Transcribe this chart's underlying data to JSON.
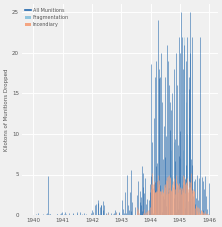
{
  "title": "",
  "xlabel": "",
  "ylabel": "Kilotons of Munitions Dropped",
  "xlim": [
    1939.6,
    1946.3
  ],
  "ylim": [
    0,
    26
  ],
  "yticks": [
    0,
    5,
    10,
    15,
    20,
    25
  ],
  "xtick_labels": [
    "1940",
    "1941",
    "1942",
    "1943",
    "1944",
    "1945",
    "1946"
  ],
  "xtick_vals": [
    1940,
    1941,
    1942,
    1943,
    1944,
    1945,
    1946
  ],
  "legend": [
    "All Munitions",
    "Fragmentation",
    "Incendiary"
  ],
  "bg_color": "#f0f0f0",
  "grid_color": "#ffffff",
  "all_munitions_color": "#2166ac",
  "fragmentation_color": "#92c5de",
  "incendiary_color": "#f4a582",
  "seed": 42
}
